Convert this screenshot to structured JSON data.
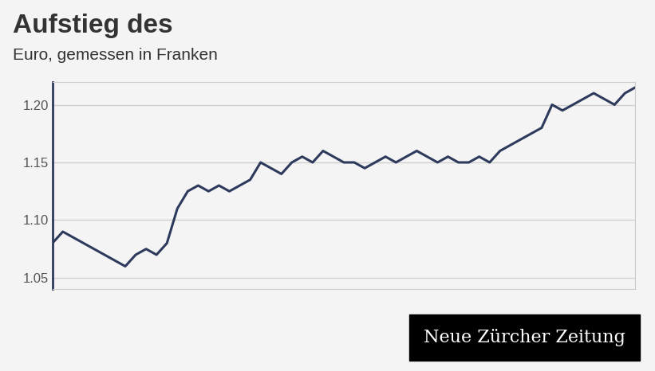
{
  "chart_data": {
    "type": "line",
    "title": "Aufstieg des",
    "subtitle": "Euro, gemessen in Franken",
    "annotations": [
      "Neue Zürcher Zeitung"
    ],
    "values": [
      1.08,
      1.09,
      1.085,
      1.08,
      1.075,
      1.07,
      1.065,
      1.06,
      1.07,
      1.075,
      1.07,
      1.08,
      1.11,
      1.125,
      1.13,
      1.125,
      1.13,
      1.125,
      1.13,
      1.135,
      1.15,
      1.145,
      1.14,
      1.15,
      1.155,
      1.15,
      1.16,
      1.155,
      1.15,
      1.15,
      1.145,
      1.15,
      1.155,
      1.15,
      1.155,
      1.16,
      1.155,
      1.15,
      1.155,
      1.15,
      1.15,
      1.155,
      1.15,
      1.16,
      1.165,
      1.17,
      1.175,
      1.18,
      1.2,
      1.195,
      1.2,
      1.205,
      1.21,
      1.205,
      1.2,
      1.21,
      1.215
    ],
    "color": "#2e3a5c",
    "ylim": [
      1.04,
      1.22
    ],
    "yticks": [
      1.05,
      {
        "value": 1.1,
        "label": "1.10"
      },
      1.15,
      {
        "value": 1.2,
        "label": "1.20"
      }
    ],
    "grid": true,
    "tick_labels": "y"
  }
}
